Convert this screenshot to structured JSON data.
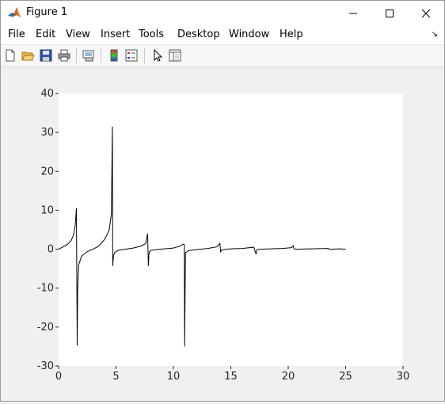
{
  "window": {
    "title": "Figure 1"
  },
  "menubar": {
    "items": [
      "File",
      "Edit",
      "View",
      "Insert",
      "Tools",
      "Desktop",
      "Window",
      "Help"
    ]
  },
  "toolbar": {
    "icons": [
      "new-figure-icon",
      "open-file-icon",
      "save-icon",
      "print-icon",
      "link-plot-icon",
      "insert-colorbar-icon",
      "insert-legend-icon",
      "edit-plot-icon",
      "property-inspector-icon"
    ]
  },
  "chart_data": {
    "type": "line",
    "title": "",
    "xlabel": "",
    "ylabel": "",
    "xlim": [
      0,
      30
    ],
    "ylim": [
      -30,
      40
    ],
    "xticks": [
      0,
      5,
      10,
      15,
      20,
      25,
      30
    ],
    "yticks": [
      -30,
      -20,
      -10,
      0,
      10,
      20,
      30,
      40
    ],
    "xtick_labels": [
      "0",
      "5",
      "10",
      "15",
      "20",
      "25",
      "30"
    ],
    "ytick_labels": [
      "-30",
      "-20",
      "-10",
      "0",
      "10",
      "20",
      "30",
      "40"
    ],
    "grid": false,
    "line_color": "#000000",
    "series": [
      {
        "x": [
          0,
          0.4,
          0.8,
          1.1,
          1.3,
          1.45,
          1.55,
          1.62,
          1.66,
          1.75,
          2.0,
          2.5,
          3.0,
          3.5,
          4.0,
          4.4,
          4.6,
          4.68,
          4.72,
          4.76,
          4.8,
          4.9,
          5.2,
          5.8,
          6.5,
          7.2,
          7.6,
          7.75,
          7.82,
          7.86,
          7.92,
          8.1,
          8.5,
          9.2,
          10.0,
          10.6,
          10.85,
          10.95,
          10.98,
          11.05,
          11.3,
          12.0,
          13.0,
          13.8,
          14.05,
          14.12,
          14.18,
          14.3,
          15.0,
          16.0,
          17.0,
          17.2,
          17.25,
          17.3,
          17.5,
          18.5,
          19.5,
          20.3,
          20.42,
          20.5,
          20.7,
          22.0,
          23.5,
          23.6,
          23.7,
          24.5,
          25.0
        ],
        "y": [
          0,
          0.6,
          1.3,
          2.3,
          3.6,
          6.0,
          10.5,
          -24.8,
          -10.0,
          -4.0,
          -1.8,
          -0.6,
          0.0,
          0.8,
          2.5,
          4.8,
          9.0,
          31.5,
          -4.3,
          -2.5,
          -1.5,
          -0.8,
          -0.3,
          0.0,
          0.3,
          0.8,
          1.5,
          4.0,
          -4.3,
          -1.5,
          -0.6,
          -0.3,
          -0.1,
          0.1,
          0.3,
          0.8,
          1.3,
          1.2,
          -25.0,
          -0.9,
          -0.4,
          -0.1,
          0.2,
          0.6,
          1.5,
          -0.8,
          -0.3,
          -0.1,
          0.1,
          0.2,
          0.5,
          -1.3,
          -0.4,
          -0.1,
          0.0,
          0.1,
          0.2,
          0.4,
          0.9,
          0.1,
          0.0,
          0.1,
          0.2,
          -0.1,
          0.0,
          0.1,
          0.0
        ]
      }
    ]
  }
}
